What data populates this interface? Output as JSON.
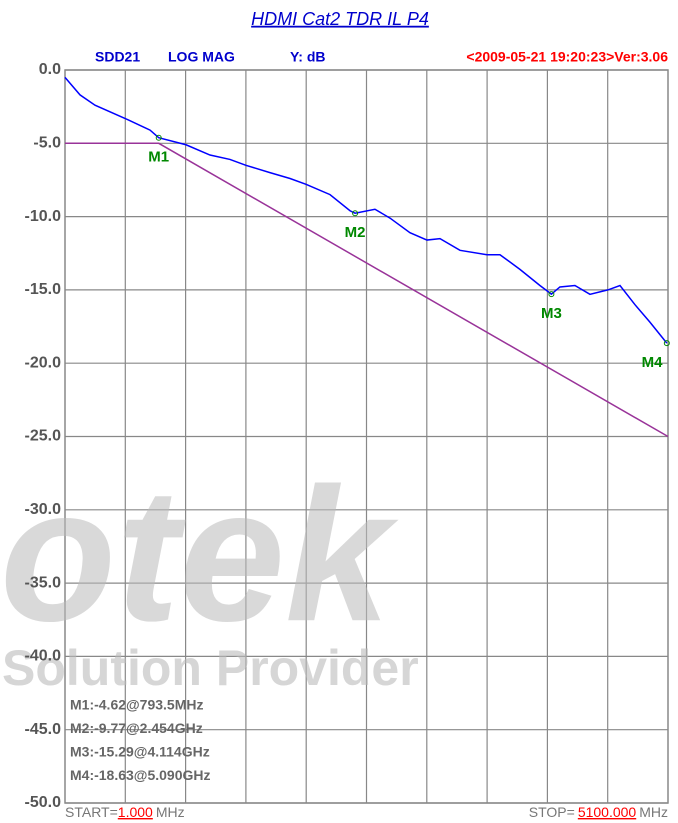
{
  "chart_data": {
    "type": "line",
    "title": "HDMI Cat2 TDR IL P4",
    "header": {
      "trace": "SDD21",
      "format": "LOG MAG",
      "y_unit": "Y: dB",
      "stamp": "<2009-05-21 19:20:23>Ver:3.06"
    },
    "xlim": [
      1,
      5100
    ],
    "ylim": [
      -50,
      0
    ],
    "yticks": [
      {
        "value": 0,
        "label": "0.0"
      },
      {
        "value": -5,
        "label": "-5.0"
      },
      {
        "value": -10,
        "label": "-10.0"
      },
      {
        "value": -15,
        "label": "-15.0"
      },
      {
        "value": -20,
        "label": "-20.0"
      },
      {
        "value": -25,
        "label": "-25.0"
      },
      {
        "value": -30,
        "label": "-30.0"
      },
      {
        "value": -35,
        "label": "-35.0"
      },
      {
        "value": -40,
        "label": "-40.0"
      },
      {
        "value": -45,
        "label": "-45.0"
      },
      {
        "value": -50,
        "label": "-50.0"
      }
    ],
    "x_grid_divisions": 10,
    "grid": true,
    "series": [
      {
        "color": "#0000ff",
        "x": [
          1,
          128,
          255,
          508,
          720,
          793.5,
          1024,
          1227,
          1396,
          1531,
          1734,
          1904,
          2039,
          2242,
          2411,
          2454,
          2622,
          2749,
          2918,
          3062,
          3172,
          3341,
          3569,
          3679,
          3848,
          4017,
          4114,
          4186,
          4313,
          4440,
          4592,
          4694,
          4820,
          4947,
          5090
        ],
        "values": [
          -0.5,
          -1.7,
          -2.4,
          -3.3,
          -4.1,
          -4.62,
          -5.1,
          -5.8,
          -6.1,
          -6.5,
          -7.0,
          -7.4,
          -7.8,
          -8.5,
          -9.6,
          -9.77,
          -9.5,
          -10.1,
          -11.1,
          -11.6,
          -11.5,
          -12.3,
          -12.6,
          -12.6,
          -13.6,
          -14.7,
          -15.29,
          -14.8,
          -14.7,
          -15.3,
          -15.0,
          -14.7,
          -16.0,
          -17.2,
          -18.63
        ]
      },
      {
        "color": "#993399",
        "x": [
          1,
          793.5,
          5100
        ],
        "values": [
          -5,
          -5,
          -25
        ]
      }
    ],
    "markers": [
      {
        "name": "M1",
        "x": 793.5,
        "y": -4.62,
        "label": "M1:-4.62@793.5MHz"
      },
      {
        "name": "M2",
        "x": 2454,
        "y": -9.77,
        "label": "M2:-9.77@2.454GHz"
      },
      {
        "name": "M3",
        "x": 4114,
        "y": -15.29,
        "label": "M3:-15.29@4.114GHz"
      },
      {
        "name": "M4",
        "x": 5090,
        "y": -18.63,
        "label": "M4:-18.63@5.090GHz"
      }
    ],
    "start": {
      "prefix": "START=",
      "value": "1.000",
      "unit": "MHz"
    },
    "stop": {
      "prefix": "STOP=",
      "value": "5100.000",
      "unit": "MHz"
    },
    "watermark": {
      "brand": "otek",
      "tagline": "Solution Provider"
    }
  }
}
